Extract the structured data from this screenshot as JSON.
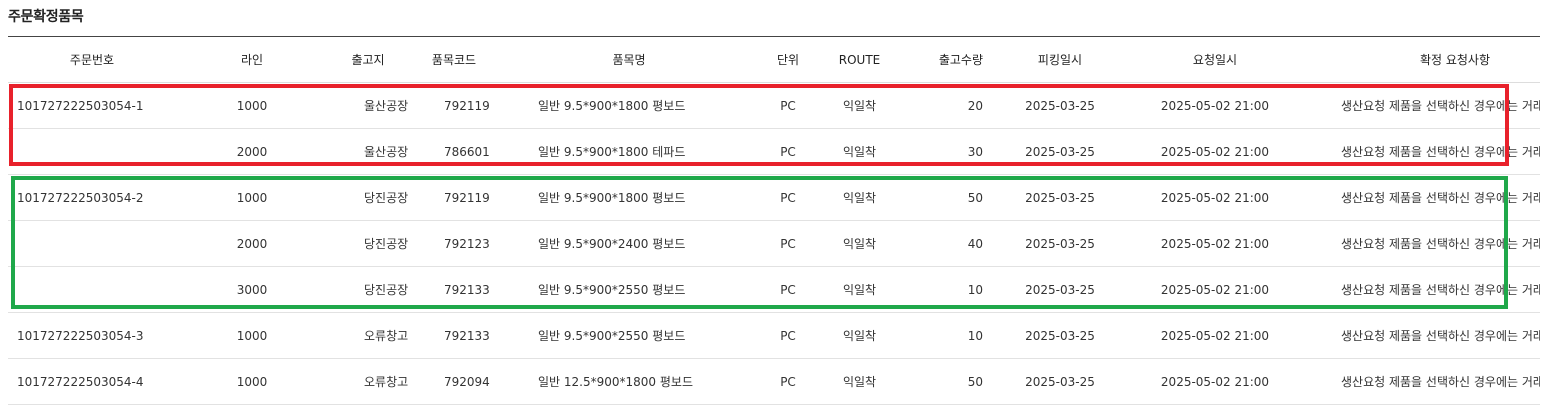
{
  "section": {
    "title": "주문확정품목"
  },
  "table": {
    "headers": {
      "order_no": "주문번호",
      "line": "라인",
      "warehouse": "출고지",
      "item_code": "품목코드",
      "item_name": "품목명",
      "unit": "단위",
      "route": "ROUTE",
      "qty": "출고수량",
      "picking_date": "피킹일시",
      "request_date": "요청일시",
      "notes": "확정 요청사항"
    },
    "rows": [
      {
        "order_no": "101727222503054-1",
        "line": "1000",
        "warehouse": "울산공장",
        "item_code": "792119",
        "item_name": "일반 9.5*900*1800 평보드",
        "unit": "PC",
        "route": "익일착",
        "qty": "20",
        "picking_date": "2025-03-25",
        "request_date": "2025-05-02 21:00",
        "notes": "생산요청 제품을 선택하신 경우에는 거래"
      },
      {
        "order_no": "",
        "line": "2000",
        "warehouse": "울산공장",
        "item_code": "786601",
        "item_name": "일반 9.5*900*1800 테파드",
        "unit": "PC",
        "route": "익일착",
        "qty": "30",
        "picking_date": "2025-03-25",
        "request_date": "2025-05-02 21:00",
        "notes": "생산요청 제품을 선택하신 경우에는 거래"
      },
      {
        "order_no": "101727222503054-2",
        "line": "1000",
        "warehouse": "당진공장",
        "item_code": "792119",
        "item_name": "일반 9.5*900*1800 평보드",
        "unit": "PC",
        "route": "익일착",
        "qty": "50",
        "picking_date": "2025-03-25",
        "request_date": "2025-05-02 21:00",
        "notes": "생산요청 제품을 선택하신 경우에는 거래"
      },
      {
        "order_no": "",
        "line": "2000",
        "warehouse": "당진공장",
        "item_code": "792123",
        "item_name": "일반 9.5*900*2400 평보드",
        "unit": "PC",
        "route": "익일착",
        "qty": "40",
        "picking_date": "2025-03-25",
        "request_date": "2025-05-02 21:00",
        "notes": "생산요청 제품을 선택하신 경우에는 거래"
      },
      {
        "order_no": "",
        "line": "3000",
        "warehouse": "당진공장",
        "item_code": "792133",
        "item_name": "일반 9.5*900*2550 평보드",
        "unit": "PC",
        "route": "익일착",
        "qty": "10",
        "picking_date": "2025-03-25",
        "request_date": "2025-05-02 21:00",
        "notes": "생산요청 제품을 선택하신 경우에는 거래"
      },
      {
        "order_no": "101727222503054-3",
        "line": "1000",
        "warehouse": "오류창고",
        "item_code": "792133",
        "item_name": "일반 9.5*900*2550 평보드",
        "unit": "PC",
        "route": "익일착",
        "qty": "10",
        "picking_date": "2025-03-25",
        "request_date": "2025-05-02 21:00",
        "notes": "생산요청 제품을 선택하신 경우에는 거래"
      },
      {
        "order_no": "101727222503054-4",
        "line": "1000",
        "warehouse": "오류창고",
        "item_code": "792094",
        "item_name": "일반 12.5*900*1800 평보드",
        "unit": "PC",
        "route": "익일착",
        "qty": "50",
        "picking_date": "2025-03-25",
        "request_date": "2025-05-02 21:00",
        "notes": "생산요청 제품을 선택하신 경우에는 거래"
      }
    ]
  },
  "highlights": {
    "group_1_color": "#e8212b",
    "group_2_color": "#1fa84a"
  }
}
